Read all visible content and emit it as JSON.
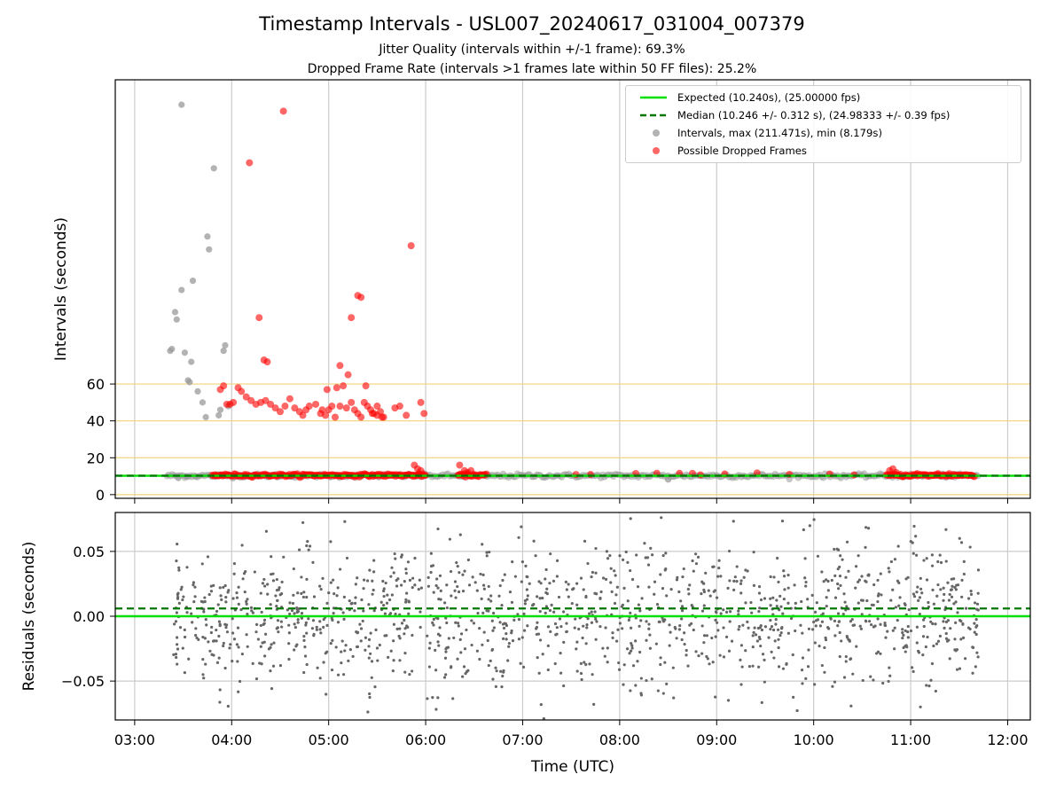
{
  "figure": {
    "title": "Timestamp Intervals - USL007_20240617_031004_007379",
    "subtitle1": "Jitter Quality (intervals within +/-1 frame): 69.3%",
    "subtitle2": "Dropped Frame Rate (intervals >1 frames late within 50 FF files): 25.2%"
  },
  "legend": {
    "expected": "Expected (10.240s), (25.00000 fps)",
    "median": "Median (10.246 +/- 0.312 s), (24.98333 +/- 0.39 fps)",
    "intervals": "Intervals, max (211.471s), min (8.179s)",
    "dropped": "Possible Dropped Frames"
  },
  "colors": {
    "expected": "#00e000",
    "median": "#007700",
    "intervals": "#999999",
    "dropped": "#ff0000",
    "residuals": "#666666",
    "threshold_lines": "#f2d27a",
    "grid": "#cccccc"
  },
  "chart_data": [
    {
      "type": "scatter",
      "ylabel": "Intervals (seconds)",
      "xlabel": "",
      "x_ticks": [
        "03:00",
        "04:00",
        "05:00",
        "06:00",
        "07:00",
        "08:00",
        "09:00",
        "10:00",
        "11:00",
        "12:00"
      ],
      "y_ticks": [
        0,
        20,
        40,
        60
      ],
      "xlim": [
        "02:48",
        "12:14"
      ],
      "ylim": [
        -2,
        225
      ],
      "grid": "x-only",
      "legend_placement": "top-right",
      "horizontal_lines": [
        {
          "name": "threshold",
          "y": 0
        },
        {
          "name": "threshold",
          "y": 20
        },
        {
          "name": "threshold",
          "y": 40
        },
        {
          "name": "threshold",
          "y": 60
        },
        {
          "name": "expected",
          "y": 10.24
        },
        {
          "name": "median",
          "y": 10.246
        }
      ],
      "series": [
        {
          "name": "Intervals, max (211.471s), min (8.179s)",
          "points": [
            [
              "03:22",
              78
            ],
            [
              "03:23",
              79
            ],
            [
              "03:25",
              99
            ],
            [
              "03:26",
              95
            ],
            [
              "03:29",
              111
            ],
            [
              "03:31",
              77
            ],
            [
              "03:33",
              62
            ],
            [
              "03:35",
              72
            ],
            [
              "03:36",
              116
            ],
            [
              "03:39",
              56
            ],
            [
              "03:42",
              50
            ],
            [
              "03:44",
              42
            ],
            [
              "03:45",
              140
            ],
            [
              "03:46",
              133
            ],
            [
              "03:49",
              177
            ],
            [
              "03:52",
              43
            ],
            [
              "03:53",
              46
            ],
            [
              "03:55",
              78
            ],
            [
              "03:56",
              81
            ],
            [
              "03:58",
              48
            ],
            [
              "03:34",
              61
            ],
            [
              "03:32",
              10
            ],
            [
              "03:27",
              9
            ],
            [
              "03:38",
              10
            ],
            [
              "03:48",
              10
            ],
            [
              "03:50",
              10
            ],
            [
              "03:29",
              211.471
            ],
            [
              "04:41",
              10
            ],
            [
              "08:30",
              8.179
            ]
          ],
          "band": {
            "from": "03:20",
            "to": "11:42",
            "y_min": 8.2,
            "y_max": 11.5
          }
        },
        {
          "name": "Possible Dropped Frames",
          "points": [
            [
              "04:11",
              180
            ],
            [
              "04:17",
              96
            ],
            [
              "04:20",
              73
            ],
            [
              "04:22",
              72
            ],
            [
              "04:32",
              208
            ],
            [
              "04:46",
              46
            ],
            [
              "04:48",
              48
            ],
            [
              "04:52",
              49
            ],
            [
              "04:55",
              44
            ],
            [
              "04:58",
              43
            ],
            [
              "05:00",
              46
            ],
            [
              "05:02",
              48
            ],
            [
              "05:04",
              42
            ],
            [
              "05:07",
              48
            ],
            [
              "05:11",
              47
            ],
            [
              "05:14",
              50
            ],
            [
              "05:16",
              46
            ],
            [
              "05:18",
              44
            ],
            [
              "05:20",
              42
            ],
            [
              "05:22",
              50
            ],
            [
              "05:24",
              48
            ],
            [
              "05:26",
              46
            ],
            [
              "05:28",
              44
            ],
            [
              "05:30",
              48
            ],
            [
              "05:32",
              45
            ],
            [
              "05:33",
              42
            ],
            [
              "04:56",
              46
            ],
            [
              "04:59",
              57
            ],
            [
              "05:05",
              58
            ],
            [
              "05:07",
              70
            ],
            [
              "05:09",
              59
            ],
            [
              "05:12",
              65
            ],
            [
              "05:14",
              96
            ],
            [
              "05:18",
              108
            ],
            [
              "05:20",
              107
            ],
            [
              "05:23",
              59
            ],
            [
              "05:27",
              44
            ],
            [
              "05:30",
              43
            ],
            [
              "05:34",
              42
            ],
            [
              "05:41",
              47
            ],
            [
              "05:44",
              48
            ],
            [
              "05:48",
              43
            ],
            [
              "05:51",
              135
            ],
            [
              "05:57",
              50
            ],
            [
              "05:59",
              44
            ],
            [
              "03:53",
              57
            ],
            [
              "03:55",
              59
            ],
            [
              "03:57",
              49
            ],
            [
              "03:59",
              49
            ],
            [
              "04:01",
              50
            ],
            [
              "04:04",
              58
            ],
            [
              "04:06",
              56
            ],
            [
              "04:09",
              53
            ],
            [
              "04:12",
              51
            ],
            [
              "04:15",
              49
            ],
            [
              "04:18",
              50
            ],
            [
              "04:21",
              51
            ],
            [
              "04:24",
              49
            ],
            [
              "04:27",
              47
            ],
            [
              "04:30",
              45
            ],
            [
              "04:33",
              48
            ],
            [
              "04:36",
              52
            ],
            [
              "04:39",
              47
            ],
            [
              "04:42",
              45
            ],
            [
              "04:44",
              43
            ],
            [
              "05:53",
              16
            ],
            [
              "05:55",
              14
            ],
            [
              "05:57",
              13
            ],
            [
              "06:21",
              16
            ],
            [
              "06:24",
              13
            ],
            [
              "06:26",
              12
            ],
            [
              "06:28",
              13
            ],
            [
              "10:47",
              13
            ],
            [
              "10:49",
              14
            ],
            [
              "10:51",
              12
            ]
          ],
          "band_segments": [
            {
              "from": "03:48",
              "to": "04:15",
              "y": 10.5
            },
            {
              "from": "04:15",
              "to": "06:00",
              "y": 10.5
            },
            {
              "from": "06:20",
              "to": "06:38",
              "y": 10.5
            },
            {
              "from": "10:45",
              "to": "11:40",
              "y": 10.5
            }
          ],
          "sparse": [
            "07:33",
            "07:42",
            "08:10",
            "08:23",
            "08:37",
            "08:45",
            "08:50",
            "09:05",
            "09:25",
            "09:45",
            "10:10",
            "10:25",
            "11:04",
            "11:17",
            "11:24"
          ]
        }
      ]
    },
    {
      "type": "scatter",
      "ylabel": "Residuals (seconds)",
      "xlabel": "Time (UTC)",
      "x_ticks": [
        "03:00",
        "04:00",
        "05:00",
        "06:00",
        "07:00",
        "08:00",
        "09:00",
        "10:00",
        "11:00",
        "12:00"
      ],
      "y_tick_labels": [
        "−0.05",
        "0.00",
        "0.05"
      ],
      "y_ticks": [
        -0.05,
        0.0,
        0.05
      ],
      "xlim": [
        "02:48",
        "12:14"
      ],
      "ylim": [
        -0.08,
        0.08
      ],
      "grid": "both",
      "horizontal_lines": [
        {
          "name": "expected",
          "y": 0.0
        },
        {
          "name": "median",
          "y": 0.006
        }
      ],
      "series": [
        {
          "name": "Residuals",
          "x_range": [
            "03:24",
            "11:42"
          ],
          "y_spread_sd": 0.028,
          "n_points": 1400
        }
      ]
    }
  ]
}
